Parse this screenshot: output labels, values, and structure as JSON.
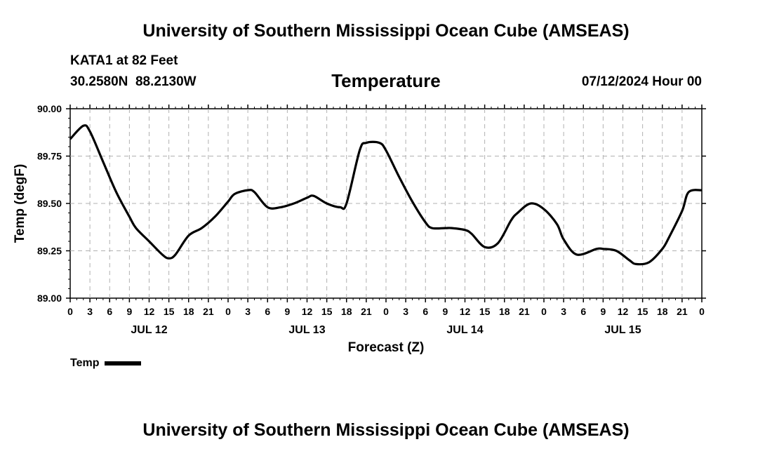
{
  "header": {
    "title": "University of Southern Mississippi Ocean Cube (AMSEAS)",
    "station": "KATA1 at 82 Feet",
    "coords": "30.2580N  88.2130W",
    "run_time": "07/12/2024 Hour 00",
    "footer_title": "University of Southern Mississippi Ocean Cube (AMSEAS)"
  },
  "chart_data": {
    "type": "line",
    "title": "Temperature",
    "xlabel": "Forecast (Z)",
    "ylabel": "Temp (degF)",
    "ylim": [
      89.0,
      90.0
    ],
    "yticks": [
      "89.00",
      "89.25",
      "89.50",
      "89.75",
      "90.00"
    ],
    "xlim_hours": [
      0,
      96
    ],
    "xtick_labels": [
      "0",
      "3",
      "6",
      "9",
      "12",
      "15",
      "18",
      "21",
      "0",
      "3",
      "6",
      "9",
      "12",
      "15",
      "18",
      "21",
      "0",
      "3",
      "6",
      "9",
      "12",
      "15",
      "18",
      "21",
      "0",
      "3",
      "6",
      "9",
      "12",
      "15",
      "18",
      "21",
      "0"
    ],
    "day_labels": [
      {
        "label": "JUL 12",
        "hour": 12
      },
      {
        "label": "JUL 13",
        "hour": 36
      },
      {
        "label": "JUL 14",
        "hour": 60
      },
      {
        "label": "JUL 15",
        "hour": 84
      }
    ],
    "grid": true,
    "legend": {
      "position": "bottom-left",
      "entries": [
        "Temp"
      ]
    },
    "series": [
      {
        "name": "Temp",
        "x": [
          0,
          2,
          3,
          5,
          7,
          9,
          10,
          12,
          14,
          15,
          16,
          18,
          20,
          22,
          24,
          25,
          27,
          28,
          30,
          32,
          34,
          36,
          37,
          39,
          41,
          42,
          44,
          45,
          47,
          48,
          50,
          52,
          54,
          55,
          57,
          58,
          60,
          61,
          63,
          65,
          67,
          68,
          70,
          72,
          74,
          75,
          77,
          80,
          81,
          83,
          85,
          86,
          88,
          90,
          91,
          93,
          94,
          96
        ],
        "y": [
          89.84,
          89.91,
          89.88,
          89.72,
          89.56,
          89.43,
          89.37,
          89.3,
          89.23,
          89.21,
          89.23,
          89.33,
          89.37,
          89.43,
          89.51,
          89.55,
          89.57,
          89.56,
          89.48,
          89.48,
          89.5,
          89.53,
          89.54,
          89.5,
          89.48,
          89.5,
          89.78,
          89.82,
          89.82,
          89.78,
          89.64,
          89.51,
          89.4,
          89.37,
          89.37,
          89.37,
          89.36,
          89.34,
          89.27,
          89.29,
          89.41,
          89.45,
          89.5,
          89.47,
          89.39,
          89.31,
          89.23,
          89.26,
          89.26,
          89.25,
          89.2,
          89.18,
          89.19,
          89.26,
          89.32,
          89.46,
          89.56,
          89.57
        ]
      }
    ]
  }
}
